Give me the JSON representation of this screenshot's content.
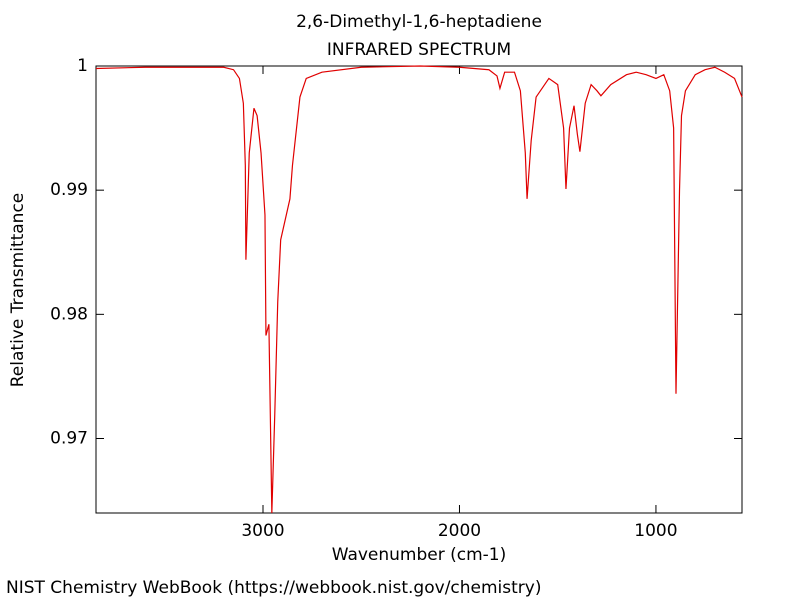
{
  "chart_data": {
    "type": "line",
    "title": "2,6-Dimethyl-1,6-heptadiene",
    "subtitle": "INFRARED SPECTRUM",
    "x_label": "Wavenumber (cm-1)",
    "y_label": "Relative Transmittance",
    "source": "NIST Chemistry WebBook (https://webbook.nist.gov/chemistry)",
    "color": "#e00000",
    "x": [
      3850,
      3600,
      3400,
      3200,
      3150,
      3120,
      3100,
      3090,
      3087,
      3070,
      3046,
      3030,
      3010,
      2990,
      2985,
      2970,
      2955,
      2940,
      2925,
      2910,
      2863,
      2850,
      2812,
      2780,
      2700,
      2500,
      2200,
      2000,
      1850,
      1809,
      1794,
      1770,
      1720,
      1690,
      1665,
      1656,
      1635,
      1610,
      1545,
      1500,
      1470,
      1458,
      1440,
      1417,
      1400,
      1387,
      1360,
      1330,
      1300,
      1280,
      1230,
      1150,
      1100,
      1050,
      1000,
      960,
      930,
      910,
      898,
      880,
      870,
      850,
      800,
      750,
      700,
      650,
      600,
      562
    ],
    "values": [
      0.9998,
      0.9999,
      0.9999,
      0.9999,
      0.9997,
      0.999,
      0.997,
      0.992,
      0.9844,
      0.993,
      0.9966,
      0.996,
      0.993,
      0.988,
      0.9783,
      0.9792,
      0.964,
      0.972,
      0.981,
      0.986,
      0.9893,
      0.992,
      0.9975,
      0.999,
      0.9995,
      0.9999,
      1.0,
      0.9999,
      0.9997,
      0.9992,
      0.9982,
      0.9995,
      0.9995,
      0.998,
      0.993,
      0.9893,
      0.994,
      0.9975,
      0.999,
      0.9985,
      0.995,
      0.9901,
      0.995,
      0.9968,
      0.9945,
      0.9931,
      0.997,
      0.9985,
      0.998,
      0.9976,
      0.9985,
      0.9993,
      0.9995,
      0.9993,
      0.999,
      0.9993,
      0.998,
      0.995,
      0.9736,
      0.99,
      0.996,
      0.998,
      0.9993,
      0.9997,
      0.9999,
      0.9995,
      0.999,
      0.9975
    ],
    "xlim": [
      3850,
      562
    ],
    "ylim": [
      0.964,
      1.0
    ],
    "xticks": [
      3000,
      2000,
      1000
    ],
    "yticks": [
      0.97,
      0.98,
      0.99,
      1
    ]
  }
}
